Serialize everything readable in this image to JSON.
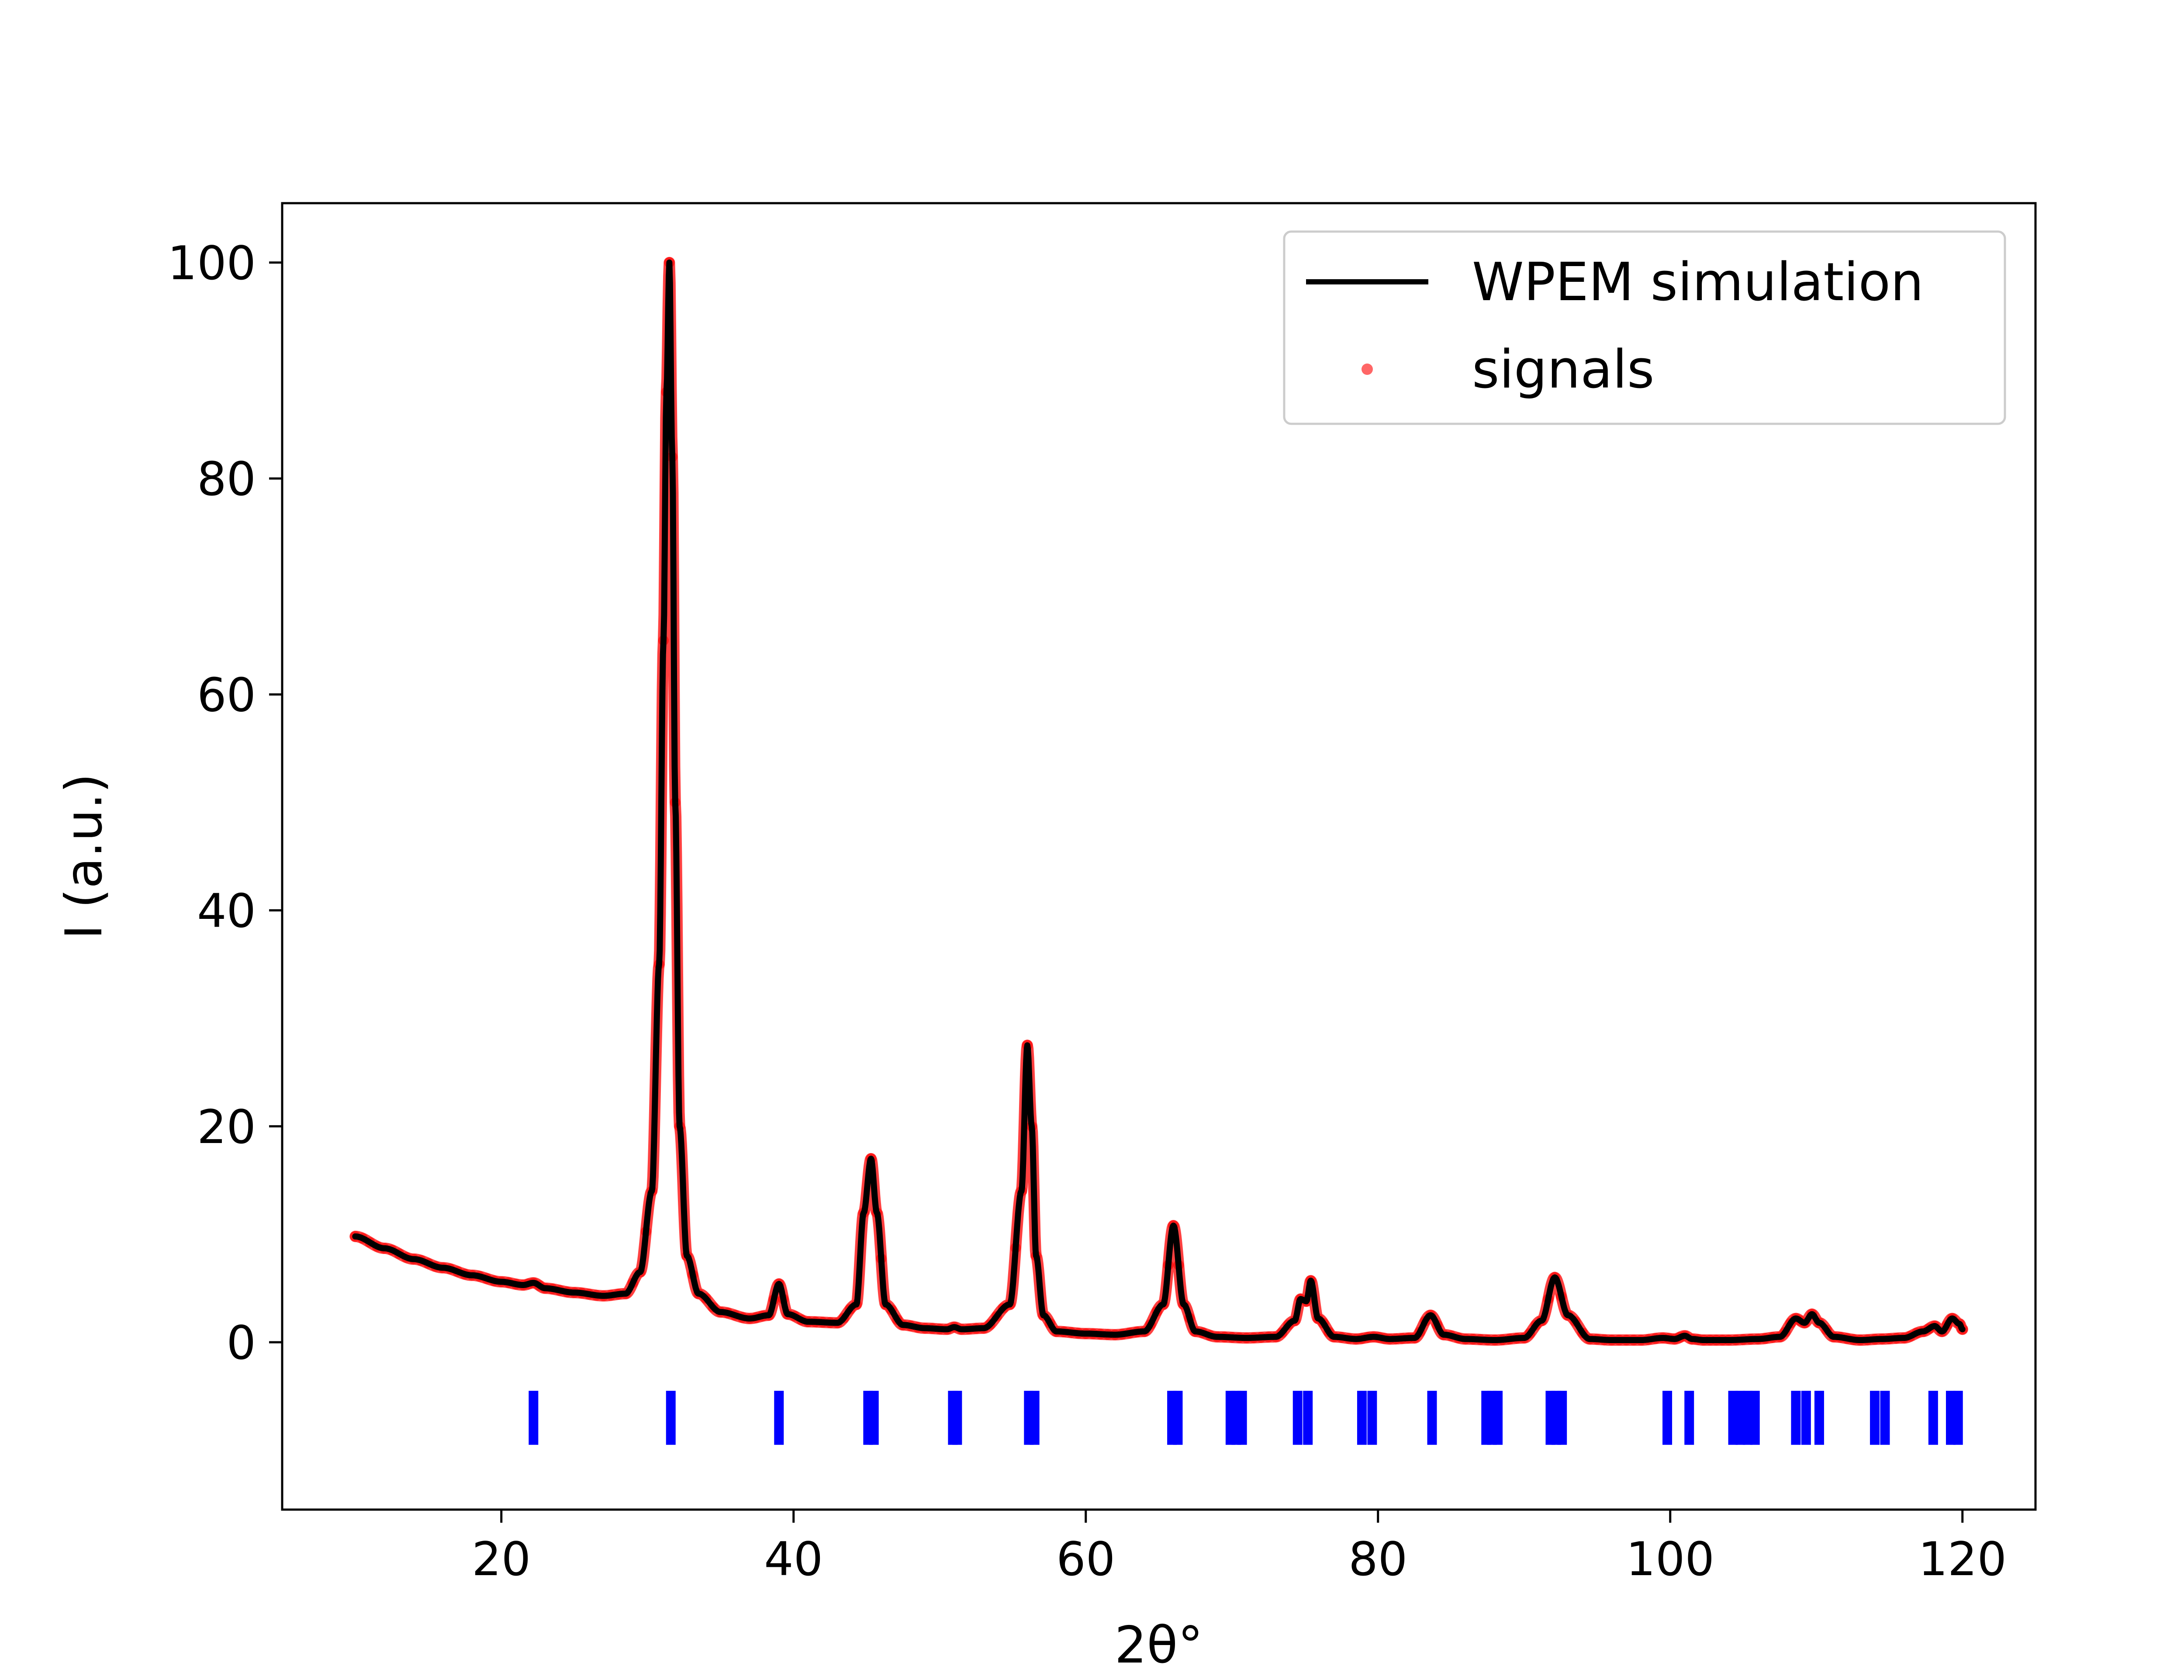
{
  "chart_data": {
    "type": "line",
    "xlabel": "2θ°",
    "ylabel": "I (a.u.)",
    "xlim": [
      5,
      125
    ],
    "ylim": [
      -15.5,
      105.5
    ],
    "xticks": [
      20,
      40,
      60,
      80,
      100,
      120
    ],
    "yticks": [
      0,
      20,
      40,
      60,
      80,
      100
    ],
    "grid": false,
    "legend_position": "top-right",
    "colors": {
      "simulation": "#000000",
      "signals": "#ff0000",
      "bragg_marks": "#0000ff"
    },
    "legend": [
      {
        "label": "WPEM simulation",
        "kind": "line",
        "color": "#000000"
      },
      {
        "label": "signals",
        "kind": "marker",
        "color": "#ff0000"
      }
    ],
    "series": [
      {
        "name": "WPEM simulation",
        "kind": "line",
        "x": [
          10,
          12,
          14,
          16,
          18,
          20,
          21.5,
          22.2,
          23,
          25,
          27,
          28.5,
          29.5,
          30.3,
          30.8,
          31.1,
          31.3,
          31.5,
          31.7,
          31.9,
          32.2,
          32.7,
          33.5,
          35,
          37,
          38.3,
          39,
          39.6,
          41,
          43,
          44.3,
          44.8,
          45.3,
          45.7,
          46.3,
          47.5,
          49,
          50.5,
          51,
          51.5,
          53,
          54.8,
          55.6,
          56.0,
          56.3,
          56.6,
          57.1,
          58,
          60,
          62,
          64,
          65.3,
          66.0,
          66.7,
          67.5,
          69,
          71,
          73,
          74.3,
          74.7,
          75.1,
          75.4,
          75.9,
          77,
          78.5,
          79.7,
          80.8,
          82.5,
          83.6,
          84.5,
          86,
          88,
          90,
          91.2,
          92.1,
          93,
          94.5,
          96,
          98,
          99.5,
          100.3,
          101,
          101.5,
          102.3,
          104,
          106,
          107.5,
          108.6,
          109.2,
          109.7,
          110.2,
          111.2,
          113,
          114.5,
          116,
          117.3,
          118.1,
          118.6,
          119.3,
          119.8,
          120
        ],
        "y": [
          9.8,
          8.7,
          7.7,
          6.9,
          6.2,
          5.6,
          5.3,
          5.5,
          5.0,
          4.6,
          4.3,
          4.5,
          6.5,
          14,
          35,
          65,
          88,
          100,
          82,
          50,
          20,
          8,
          4.5,
          2.8,
          2.2,
          2.5,
          5.4,
          2.6,
          1.9,
          1.8,
          3.5,
          12,
          17,
          12,
          3.5,
          1.6,
          1.3,
          1.2,
          1.4,
          1.2,
          1.3,
          3.5,
          14,
          27.5,
          20,
          8,
          2.5,
          1.0,
          0.8,
          0.7,
          1.0,
          3.5,
          10.8,
          3.5,
          1.0,
          0.5,
          0.4,
          0.5,
          2,
          4,
          3.8,
          5.7,
          2.2,
          0.5,
          0.3,
          0.5,
          0.3,
          0.4,
          2.5,
          0.7,
          0.3,
          0.2,
          0.4,
          2,
          6.0,
          2.5,
          0.3,
          0.2,
          0.2,
          0.4,
          0.3,
          0.6,
          0.3,
          0.2,
          0.2,
          0.3,
          0.5,
          2.2,
          1.8,
          2.6,
          1.8,
          0.5,
          0.2,
          0.3,
          0.4,
          1.0,
          1.5,
          1.0,
          2.2,
          1.7,
          1.2
        ]
      },
      {
        "name": "signals",
        "kind": "scatter",
        "note_follows": "WPEM simulation"
      }
    ],
    "bragg_positions": [
      22.2,
      31.6,
      39.0,
      45.1,
      45.5,
      50.9,
      51.2,
      56.1,
      56.5,
      65.9,
      66.3,
      69.9,
      70.3,
      70.7,
      74.5,
      75.2,
      78.9,
      79.6,
      83.7,
      87.4,
      87.8,
      88.2,
      91.8,
      92.2,
      92.6,
      99.8,
      101.3,
      104.3,
      104.8,
      105.3,
      105.8,
      108.6,
      109.3,
      110.2,
      114.0,
      114.7,
      118.0,
      119.2,
      119.7
    ],
    "bragg_mark_range": [
      -9.5,
      -4.5
    ]
  }
}
